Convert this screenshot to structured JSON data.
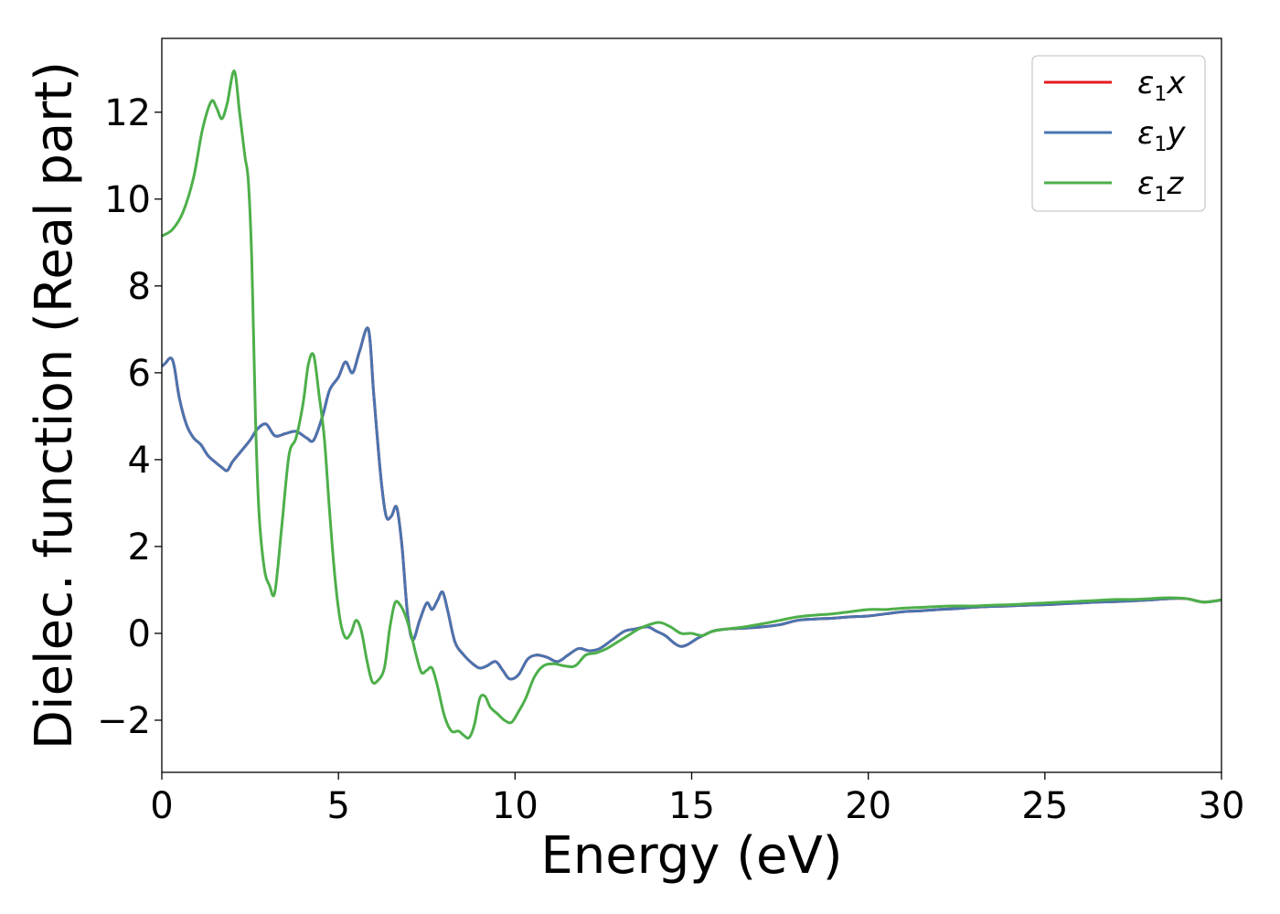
{
  "chart_data": {
    "type": "line",
    "xlabel": "Energy (eV)",
    "ylabel": "Dielec. function (Real part)",
    "xlim": [
      0,
      30
    ],
    "ylim": [
      -3.2,
      13.7
    ],
    "xticks": [
      0,
      5,
      10,
      15,
      20,
      25,
      30
    ],
    "xtick_labels": [
      "0",
      "5",
      "10",
      "15",
      "20",
      "25",
      "30"
    ],
    "yticks": [
      -2,
      0,
      2,
      4,
      6,
      8,
      10,
      12
    ],
    "ytick_labels": [
      "−2",
      "0",
      "2",
      "4",
      "6",
      "8",
      "10",
      "12"
    ],
    "grid": false,
    "legend_position": "top-right",
    "series": [
      {
        "name": "ε1x",
        "symbol": "ε",
        "subscript": "1",
        "suffix": "x",
        "color": "#e41a1c",
        "x": [
          0,
          0.1,
          0.25,
          0.35,
          0.5,
          0.7,
          0.9,
          1.1,
          1.3,
          1.5,
          1.7,
          1.85,
          2.0,
          2.2,
          2.5,
          2.7,
          2.95,
          3.2,
          3.5,
          3.8,
          4.1,
          4.3,
          4.55,
          4.75,
          5.0,
          5.2,
          5.4,
          5.6,
          5.85,
          6.0,
          6.2,
          6.35,
          6.5,
          6.65,
          6.8,
          6.95,
          7.1,
          7.3,
          7.5,
          7.65,
          7.8,
          7.95,
          8.1,
          8.3,
          8.55,
          8.8,
          9.0,
          9.2,
          9.45,
          9.65,
          9.85,
          10.1,
          10.35,
          10.6,
          10.9,
          11.2,
          11.5,
          11.8,
          12.1,
          12.4,
          12.75,
          13.1,
          13.4,
          13.75,
          14.0,
          14.25,
          14.7,
          15.2,
          15.6,
          16.0,
          16.5,
          17.0,
          17.5,
          18.0,
          18.5,
          19.0,
          19.5,
          20.0,
          20.5,
          21.0,
          21.5,
          22.0,
          22.5,
          23.0,
          23.5,
          24.0,
          24.5,
          25.0,
          25.5,
          26.0,
          26.5,
          27.0,
          27.5,
          28.0,
          28.5,
          29.0,
          29.5,
          30.0
        ],
        "y": [
          6.15,
          6.22,
          6.34,
          6.15,
          5.4,
          4.8,
          4.5,
          4.35,
          4.1,
          3.95,
          3.82,
          3.75,
          3.95,
          4.15,
          4.45,
          4.7,
          4.82,
          4.55,
          4.6,
          4.65,
          4.5,
          4.45,
          5.0,
          5.6,
          5.9,
          6.25,
          6.0,
          6.5,
          7.0,
          5.5,
          3.6,
          2.7,
          2.7,
          2.9,
          2.0,
          0.5,
          -0.15,
          0.3,
          0.7,
          0.55,
          0.75,
          0.95,
          0.5,
          -0.2,
          -0.5,
          -0.7,
          -0.8,
          -0.75,
          -0.65,
          -0.85,
          -1.05,
          -0.95,
          -0.6,
          -0.5,
          -0.55,
          -0.65,
          -0.5,
          -0.35,
          -0.4,
          -0.35,
          -0.15,
          0.05,
          0.1,
          0.15,
          0.05,
          -0.05,
          -0.3,
          -0.1,
          0.05,
          0.1,
          0.12,
          0.15,
          0.2,
          0.3,
          0.33,
          0.35,
          0.38,
          0.4,
          0.45,
          0.5,
          0.52,
          0.55,
          0.57,
          0.6,
          0.62,
          0.63,
          0.65,
          0.66,
          0.68,
          0.7,
          0.72,
          0.73,
          0.75,
          0.77,
          0.8,
          0.8,
          0.72,
          0.77
        ]
      },
      {
        "name": "ε1y",
        "symbol": "ε",
        "subscript": "1",
        "suffix": "y",
        "color": "#4a74b0",
        "x": [
          0,
          0.1,
          0.25,
          0.35,
          0.5,
          0.7,
          0.9,
          1.1,
          1.3,
          1.5,
          1.7,
          1.85,
          2.0,
          2.2,
          2.5,
          2.7,
          2.95,
          3.2,
          3.5,
          3.8,
          4.1,
          4.3,
          4.55,
          4.75,
          5.0,
          5.2,
          5.4,
          5.6,
          5.85,
          6.0,
          6.2,
          6.35,
          6.5,
          6.65,
          6.8,
          6.95,
          7.1,
          7.3,
          7.5,
          7.65,
          7.8,
          7.95,
          8.1,
          8.3,
          8.55,
          8.8,
          9.0,
          9.2,
          9.45,
          9.65,
          9.85,
          10.1,
          10.35,
          10.6,
          10.9,
          11.2,
          11.5,
          11.8,
          12.1,
          12.4,
          12.75,
          13.1,
          13.4,
          13.75,
          14.0,
          14.25,
          14.7,
          15.2,
          15.6,
          16.0,
          16.5,
          17.0,
          17.5,
          18.0,
          18.5,
          19.0,
          19.5,
          20.0,
          20.5,
          21.0,
          21.5,
          22.0,
          22.5,
          23.0,
          23.5,
          24.0,
          24.5,
          25.0,
          25.5,
          26.0,
          26.5,
          27.0,
          27.5,
          28.0,
          28.5,
          29.0,
          29.5,
          30.0
        ],
        "y": [
          6.15,
          6.22,
          6.34,
          6.15,
          5.4,
          4.8,
          4.5,
          4.35,
          4.1,
          3.95,
          3.82,
          3.75,
          3.95,
          4.15,
          4.45,
          4.7,
          4.82,
          4.55,
          4.6,
          4.65,
          4.5,
          4.45,
          5.0,
          5.6,
          5.9,
          6.25,
          6.0,
          6.5,
          7.0,
          5.5,
          3.6,
          2.7,
          2.7,
          2.9,
          2.0,
          0.5,
          -0.15,
          0.3,
          0.7,
          0.55,
          0.75,
          0.95,
          0.5,
          -0.2,
          -0.5,
          -0.7,
          -0.8,
          -0.75,
          -0.65,
          -0.85,
          -1.05,
          -0.95,
          -0.6,
          -0.5,
          -0.55,
          -0.65,
          -0.5,
          -0.35,
          -0.4,
          -0.35,
          -0.15,
          0.05,
          0.1,
          0.15,
          0.05,
          -0.05,
          -0.3,
          -0.1,
          0.05,
          0.1,
          0.12,
          0.15,
          0.2,
          0.3,
          0.33,
          0.35,
          0.38,
          0.4,
          0.45,
          0.5,
          0.52,
          0.55,
          0.57,
          0.6,
          0.62,
          0.63,
          0.65,
          0.66,
          0.68,
          0.7,
          0.72,
          0.73,
          0.75,
          0.77,
          0.8,
          0.8,
          0.72,
          0.77
        ]
      },
      {
        "name": "ε1z",
        "symbol": "ε",
        "subscript": "1",
        "suffix": "z",
        "color": "#4daf4a",
        "x": [
          0,
          0.3,
          0.6,
          0.9,
          1.15,
          1.4,
          1.55,
          1.7,
          1.85,
          2.05,
          2.2,
          2.35,
          2.45,
          2.55,
          2.65,
          2.75,
          2.9,
          3.05,
          3.2,
          3.4,
          3.6,
          3.8,
          4.0,
          4.15,
          4.3,
          4.45,
          4.6,
          4.75,
          4.9,
          5.05,
          5.2,
          5.35,
          5.5,
          5.65,
          5.8,
          5.95,
          6.1,
          6.3,
          6.45,
          6.6,
          6.75,
          6.9,
          7.05,
          7.2,
          7.35,
          7.5,
          7.65,
          7.8,
          8.0,
          8.2,
          8.4,
          8.55,
          8.7,
          8.85,
          9.0,
          9.15,
          9.3,
          9.5,
          9.7,
          9.9,
          10.1,
          10.3,
          10.55,
          10.8,
          11.1,
          11.4,
          11.7,
          12.0,
          12.3,
          12.6,
          12.9,
          13.2,
          13.5,
          13.8,
          14.1,
          14.4,
          14.7,
          15.0,
          15.3,
          15.6,
          16.0,
          16.5,
          17.0,
          17.5,
          18.0,
          18.5,
          19.0,
          19.5,
          20.0,
          20.5,
          21.0,
          21.5,
          22.0,
          22.5,
          23.0,
          23.5,
          24.0,
          24.5,
          25.0,
          25.5,
          26.0,
          26.5,
          27.0,
          27.5,
          28.0,
          28.5,
          29.0,
          29.5,
          30.0
        ],
        "y": [
          9.15,
          9.3,
          9.7,
          10.5,
          11.6,
          12.25,
          12.1,
          11.85,
          12.2,
          12.95,
          12.0,
          11.0,
          10.4,
          8.5,
          5.0,
          2.8,
          1.5,
          1.1,
          0.95,
          2.5,
          4.1,
          4.5,
          5.3,
          6.2,
          6.4,
          5.5,
          4.5,
          2.8,
          1.3,
          0.3,
          -0.1,
          0.0,
          0.3,
          0.05,
          -0.6,
          -1.1,
          -1.1,
          -0.8,
          0.1,
          0.7,
          0.65,
          0.4,
          0.0,
          -0.5,
          -0.9,
          -0.85,
          -0.8,
          -1.2,
          -1.9,
          -2.25,
          -2.25,
          -2.35,
          -2.4,
          -2.1,
          -1.5,
          -1.45,
          -1.7,
          -1.85,
          -2.0,
          -2.05,
          -1.8,
          -1.5,
          -1.0,
          -0.75,
          -0.7,
          -0.75,
          -0.75,
          -0.5,
          -0.45,
          -0.35,
          -0.2,
          -0.05,
          0.1,
          0.2,
          0.25,
          0.15,
          0.0,
          0.0,
          -0.05,
          0.05,
          0.1,
          0.15,
          0.22,
          0.3,
          0.38,
          0.42,
          0.45,
          0.5,
          0.55,
          0.55,
          0.58,
          0.6,
          0.62,
          0.63,
          0.63,
          0.65,
          0.66,
          0.68,
          0.7,
          0.72,
          0.74,
          0.76,
          0.78,
          0.78,
          0.8,
          0.82,
          0.8,
          0.72,
          0.77
        ]
      }
    ]
  }
}
